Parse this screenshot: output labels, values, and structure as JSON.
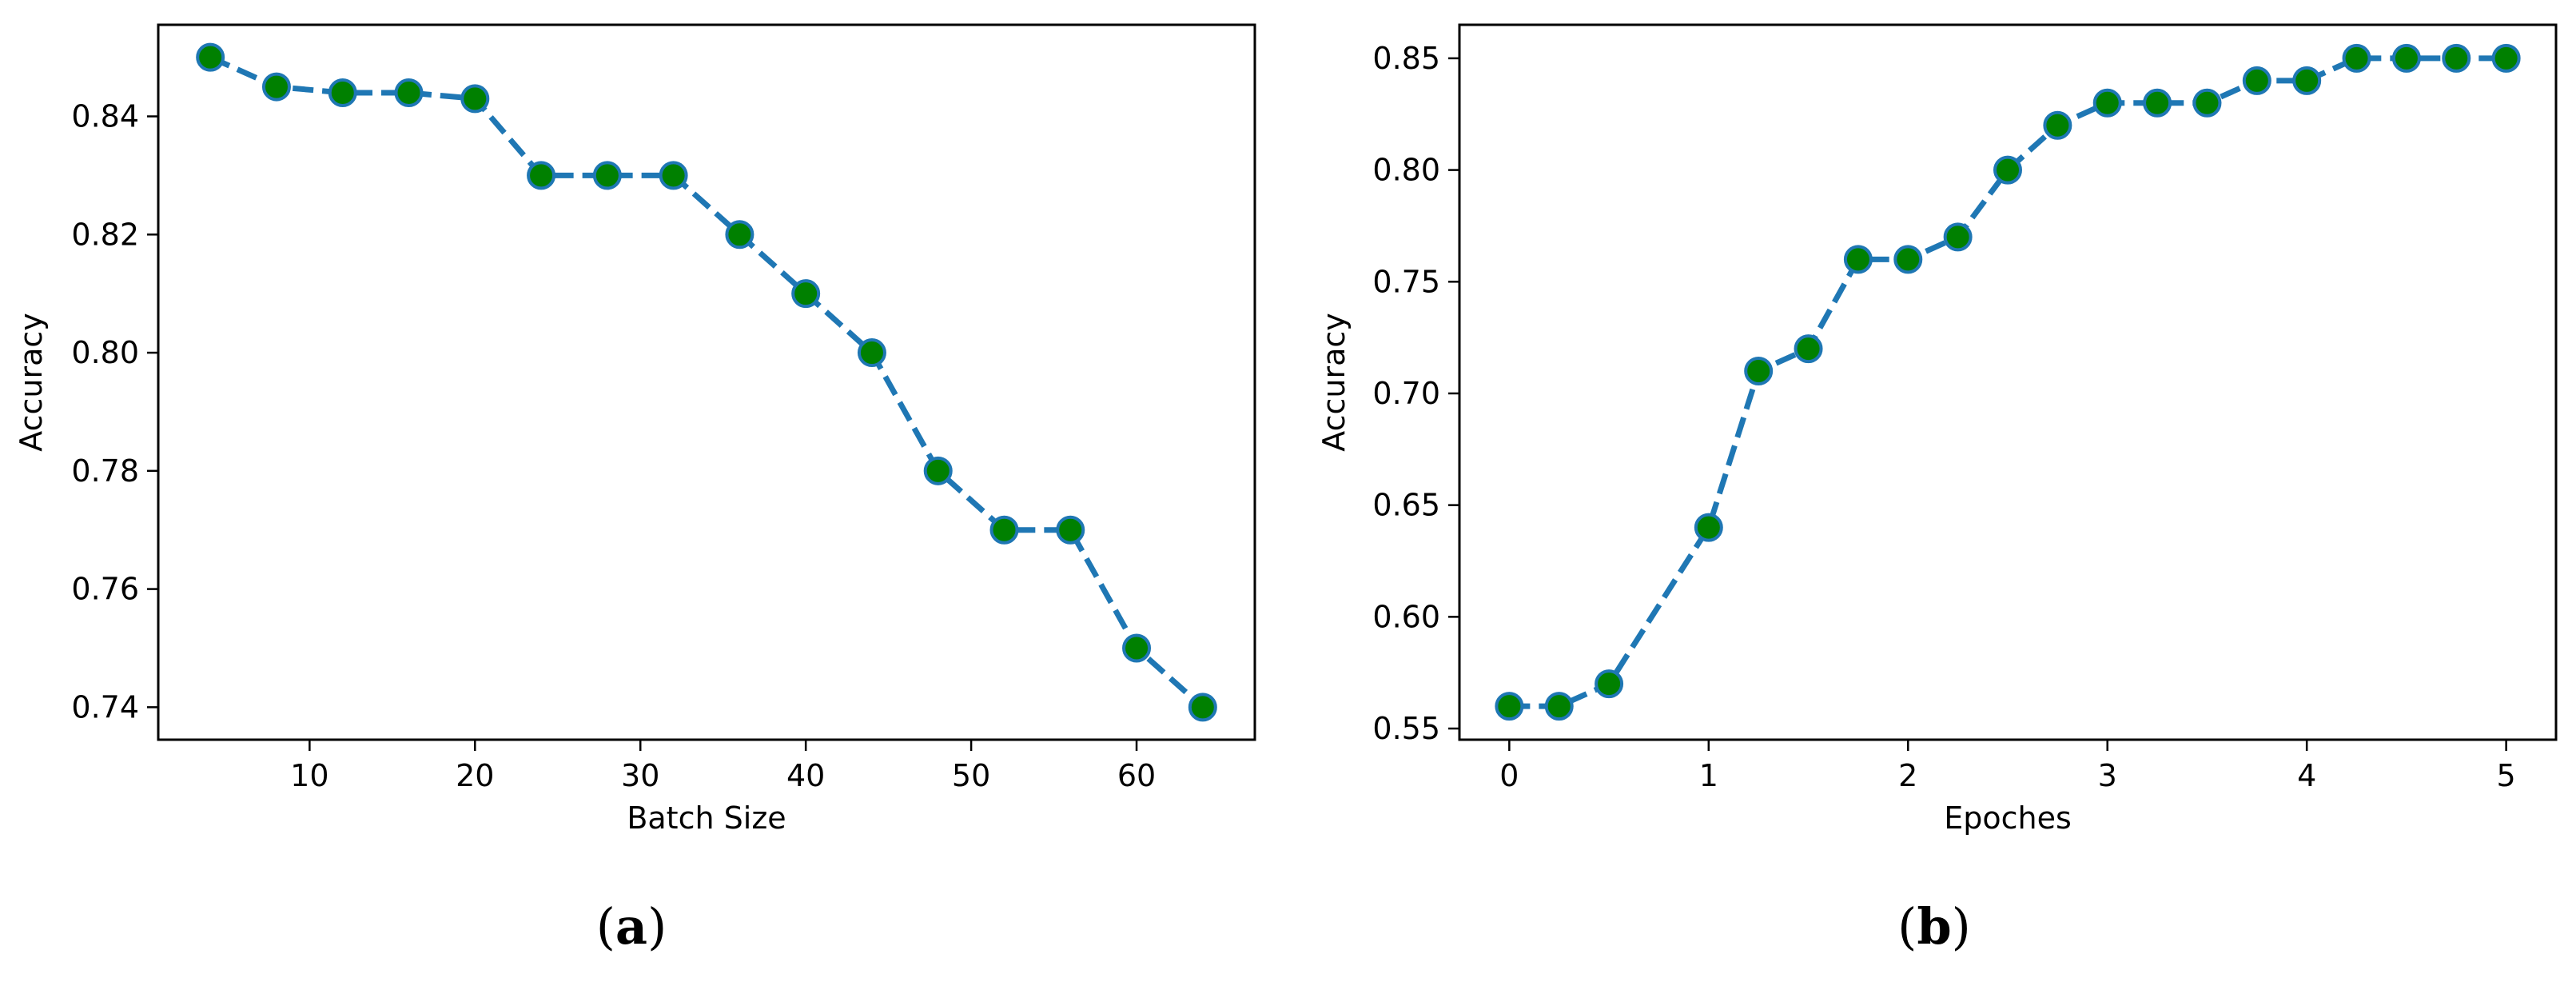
{
  "chart_data": [
    {
      "type": "line",
      "caption_letter": "a",
      "xlabel": "Batch Size",
      "ylabel": "Accuracy",
      "xlim": [
        0.85,
        67.15
      ],
      "ylim": [
        0.7345,
        0.8555
      ],
      "xticks": [
        10,
        20,
        30,
        40,
        50,
        60
      ],
      "xtick_labels": [
        "10",
        "20",
        "30",
        "40",
        "50",
        "60"
      ],
      "yticks": [
        0.74,
        0.76,
        0.78,
        0.8,
        0.82,
        0.84
      ],
      "ytick_labels": [
        "0.74",
        "0.76",
        "0.78",
        "0.80",
        "0.82",
        "0.84"
      ],
      "grid": false,
      "series": [
        {
          "x": [
            4,
            8,
            12,
            16,
            20,
            24,
            28,
            32,
            36,
            40,
            44,
            48,
            52,
            56,
            60,
            64
          ],
          "y": [
            0.85,
            0.845,
            0.844,
            0.844,
            0.843,
            0.83,
            0.83,
            0.83,
            0.82,
            0.81,
            0.8,
            0.78,
            0.77,
            0.77,
            0.75,
            0.74
          ],
          "line_color": "#1f77b4",
          "marker_color": "#008000",
          "line_style": "dashed"
        }
      ]
    },
    {
      "type": "line",
      "caption_letter": "b",
      "xlabel": "Epoches",
      "ylabel": "Accuracy",
      "xlim": [
        -0.25,
        5.25
      ],
      "ylim": [
        0.545,
        0.865
      ],
      "xticks": [
        0,
        1,
        2,
        3,
        4,
        5
      ],
      "xtick_labels": [
        "0",
        "1",
        "2",
        "3",
        "4",
        "5"
      ],
      "yticks": [
        0.55,
        0.6,
        0.65,
        0.7,
        0.75,
        0.8,
        0.85
      ],
      "ytick_labels": [
        "0.55",
        "0.60",
        "0.65",
        "0.70",
        "0.75",
        "0.80",
        "0.85"
      ],
      "grid": false,
      "series": [
        {
          "x": [
            0,
            0.25,
            0.5,
            1,
            1.25,
            1.5,
            1.75,
            2,
            2.25,
            2.5,
            2.75,
            3,
            3.25,
            3.5,
            3.75,
            4,
            4.25,
            4.5,
            4.75,
            5
          ],
          "y": [
            0.56,
            0.56,
            0.57,
            0.64,
            0.71,
            0.72,
            0.76,
            0.76,
            0.77,
            0.8,
            0.82,
            0.83,
            0.83,
            0.83,
            0.84,
            0.84,
            0.85,
            0.85,
            0.85,
            0.85
          ],
          "line_color": "#1f77b4",
          "marker_color": "#008000",
          "line_style": "dashed"
        }
      ]
    }
  ]
}
